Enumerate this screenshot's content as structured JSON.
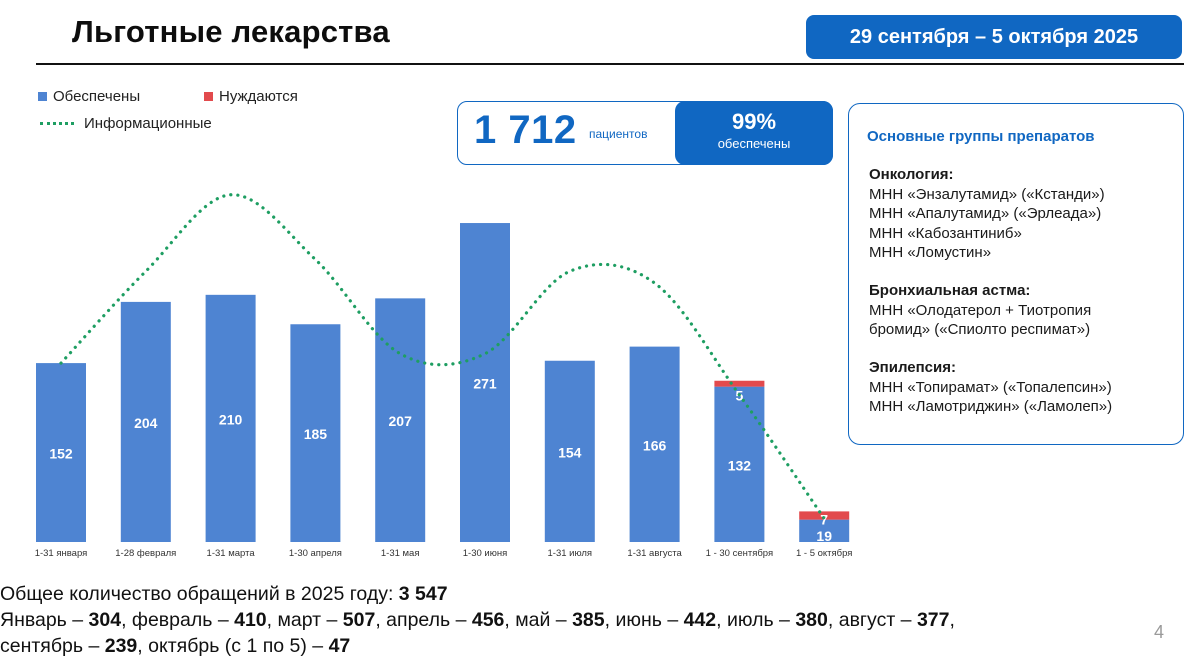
{
  "header": {
    "title": "Льготные лекарства",
    "date_range": "29 сентября – 5 октября 2025"
  },
  "legend": {
    "provided": "Обеспечены",
    "needing": "Нуждаются",
    "info": "Информационные"
  },
  "stats": {
    "patients_value": "1 712",
    "patients_label": "пациентов",
    "percent_value": "99%",
    "percent_label": "обеспечены"
  },
  "drug_groups": {
    "title": "Основные группы препаратов",
    "sections": [
      {
        "heading": "Онкология:",
        "lines": [
          "МНН «Энзалутамид» («Кстанди»)",
          "МНН «Апалутамид» («Эрлеада»)",
          "МНН «Кабозантиниб»",
          "МНН «Ломустин»"
        ]
      },
      {
        "heading": "Бронхиальная астма:",
        "lines": [
          "МНН «Олодатерол + Тиотропия",
          "бромид» («Спиолто респимат»)"
        ]
      },
      {
        "heading": "Эпилепсия:",
        "lines": [
          "МНН «Топирамат» («Топалепсин»)",
          "МНН «Ламотриджин» («Ламолеп»)"
        ]
      }
    ]
  },
  "chart_data": {
    "type": "bar",
    "stacked": true,
    "title": "",
    "xlabel": "",
    "ylabel": "",
    "categories": [
      "1-31 января",
      "1-28 февраля",
      "1-31 марта",
      "1-30 апреля",
      "1-31 мая",
      "1-30 июня",
      "1-31 июля",
      "1-31 августа",
      "1 - 30 сентября",
      "1 - 5 октября"
    ],
    "series": [
      {
        "name": "Обеспечены",
        "color": "#4e84d2",
        "values": [
          152,
          204,
          210,
          185,
          207,
          271,
          154,
          166,
          132,
          19
        ]
      },
      {
        "name": "Нуждаются",
        "color": "#e24a4d",
        "values": [
          0,
          0,
          0,
          0,
          0,
          0,
          0,
          0,
          5,
          7
        ]
      }
    ],
    "line_series": {
      "name": "Информационные",
      "color": "#1e9e62",
      "style": "dotted",
      "values": [
        152,
        230,
        295,
        240,
        160,
        160,
        230,
        220,
        125,
        20
      ]
    },
    "ylim": [
      0,
      300
    ],
    "grid": false,
    "legend": "top-left"
  },
  "summary": {
    "total_prefix": "Общее количество обращений в 2025 году: ",
    "total_value": "3 547",
    "months": [
      {
        "label": "Январь",
        "value": "304"
      },
      {
        "label": "февраль",
        "value": "410"
      },
      {
        "label": "март",
        "value": "507"
      },
      {
        "label": "апрель",
        "value": "456"
      },
      {
        "label": "май",
        "value": "385"
      },
      {
        "label": "июнь",
        "value": "442"
      },
      {
        "label": "июль",
        "value": "380"
      },
      {
        "label": "август",
        "value": "377"
      },
      {
        "label": "сентябрь",
        "value": "239"
      },
      {
        "label": "октябрь (с 1 по 5)",
        "value": "47"
      }
    ]
  },
  "page_number": "4"
}
